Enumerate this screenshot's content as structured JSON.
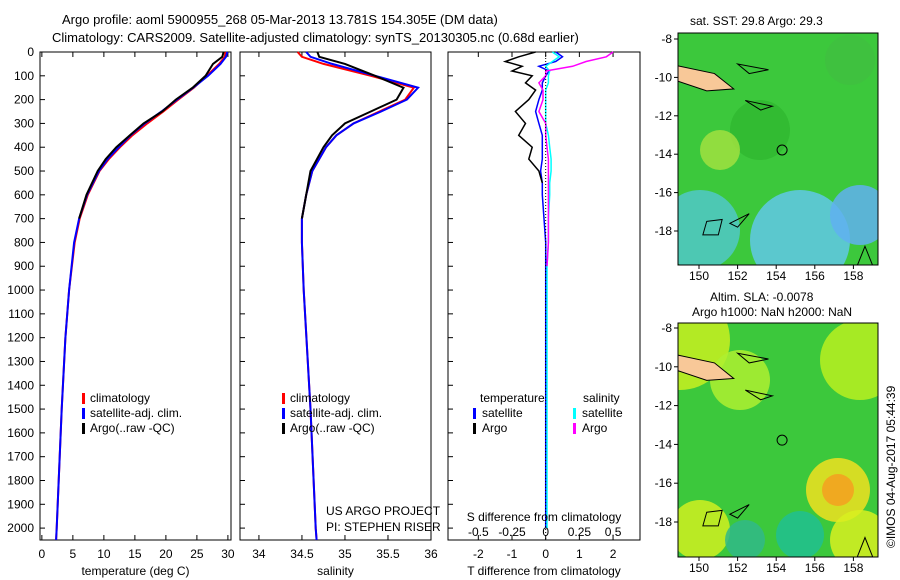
{
  "title_line1": "Argo profile: aoml 5900955_268 05-Mar-2013 13.781S 154.305E (DM data)",
  "title_line2": "Climatology: CARS2009. Satellite-adjusted climatology: synTS_20130305.nc (0.68d earlier)",
  "credit": "©IMOS 04-Aug-2017 05:44:39",
  "project_line1": "US ARGO PROJECT",
  "project_line2": "PI: STEPHEN RISER",
  "colors": {
    "climatology": "#ff0000",
    "satellite": "#0000ff",
    "argo": "#000000",
    "sal_satellite": "#00ffff",
    "sal_argo": "#ff00ff"
  },
  "legend": {
    "climatology": "climatology",
    "satellite": "satellite-adj. clim.",
    "argo": "Argo(..raw -QC)"
  },
  "diff_legend": {
    "temperature": "temperature",
    "salinity": "salinity",
    "satellite": "satellite",
    "argo": "Argo"
  },
  "chart_data": [
    {
      "type": "line",
      "name": "temperature",
      "xlabel": "temperature (deg C)",
      "xlim": [
        -0.3,
        30.5
      ],
      "xticks": [
        "0",
        "5",
        "10",
        "15",
        "20",
        "25",
        "30"
      ],
      "ylim": [
        0,
        2050
      ],
      "yticks": [
        "0",
        "100",
        "200",
        "300",
        "400",
        "500",
        "600",
        "700",
        "800",
        "900",
        "1000",
        "1100",
        "1200",
        "1300",
        "1400",
        "1500",
        "1600",
        "1700",
        "1800",
        "1900",
        "2000"
      ],
      "depth": [
        0,
        20,
        50,
        100,
        150,
        200,
        250,
        300,
        350,
        400,
        450,
        500,
        600,
        700,
        800,
        1000,
        1200,
        1500,
        2000,
        2050
      ],
      "series": [
        {
          "name": "climatology",
          "values": [
            29.6,
            29.5,
            28.6,
            26.6,
            24.5,
            22,
            19.6,
            17,
            14.6,
            12.6,
            10.8,
            9.3,
            7.4,
            6.1,
            5.3,
            4.4,
            3.8,
            3.2,
            2.4,
            2.3
          ]
        },
        {
          "name": "satellite-adj. clim.",
          "values": [
            29.9,
            29.7,
            28.8,
            26.8,
            24.4,
            21.8,
            19.3,
            16.6,
            14.3,
            12.4,
            10.6,
            9.2,
            7.3,
            6.0,
            5.2,
            4.4,
            3.8,
            3.2,
            2.4,
            2.3
          ]
        },
        {
          "name": "Argo",
          "values": [
            29.3,
            29.1,
            27.6,
            26.4,
            24.3,
            21.6,
            19.4,
            16.4,
            14.2,
            12.0,
            10.3,
            9.0,
            7.2,
            6.0,
            null,
            null,
            null,
            null,
            null,
            null
          ]
        }
      ]
    },
    {
      "type": "line",
      "name": "salinity",
      "xlabel": "salinity",
      "xlim": [
        33.78,
        36
      ],
      "xticks": [
        "34",
        "34.5",
        "35",
        "35.5",
        "36"
      ],
      "depth": [
        0,
        20,
        50,
        100,
        150,
        200,
        250,
        300,
        350,
        400,
        500,
        600,
        700,
        800,
        1000,
        1500,
        2000,
        2050
      ],
      "series": [
        {
          "name": "climatology",
          "values": [
            34.45,
            34.5,
            34.75,
            35.3,
            35.8,
            35.7,
            35.4,
            35.1,
            34.9,
            34.78,
            34.62,
            34.55,
            34.5,
            34.5,
            34.52,
            34.6,
            34.66,
            34.67
          ]
        },
        {
          "name": "satellite-adj. clim.",
          "values": [
            34.55,
            34.6,
            34.85,
            35.35,
            35.85,
            35.72,
            35.42,
            35.1,
            34.9,
            34.78,
            34.62,
            34.55,
            34.5,
            34.5,
            34.52,
            34.6,
            34.66,
            34.67
          ]
        },
        {
          "name": "Argo",
          "values": [
            34.68,
            34.7,
            35.0,
            35.35,
            35.68,
            35.6,
            35.3,
            35.0,
            34.85,
            34.75,
            34.6,
            34.55,
            34.5,
            null,
            null,
            null,
            null,
            null
          ]
        }
      ]
    },
    {
      "type": "line",
      "name": "differences",
      "xlabel": "T difference from climatology",
      "x2label": "S difference from climatology",
      "xlim": [
        -2.9,
        2.8
      ],
      "xticks": [
        "-2",
        "-1",
        "0",
        "1",
        "2"
      ],
      "x2ticks": [
        "-0.5",
        "-0.25",
        "0",
        "0.25",
        "0.5"
      ],
      "depth": [
        0,
        20,
        40,
        60,
        80,
        100,
        130,
        160,
        200,
        250,
        300,
        350,
        400,
        450,
        500,
        550,
        600,
        700,
        800,
        900,
        1000,
        1500,
        2000
      ],
      "series": [
        {
          "name": "T satellite",
          "values": [
            0.3,
            0.5,
            0.3,
            -0.2,
            0.1,
            0,
            -0.1,
            -0.1,
            -0.2,
            -0.3,
            -0.2,
            -0.1,
            -0.1,
            -0.1,
            -0.15,
            -0.1,
            -0.1,
            -0.05,
            0,
            0,
            0,
            0,
            0
          ]
        },
        {
          "name": "T Argo",
          "values": [
            -0.3,
            -0.8,
            -1.2,
            -0.7,
            -1.0,
            -0.4,
            -0.6,
            -0.3,
            -0.5,
            -0.9,
            -0.6,
            -0.8,
            -0.4,
            -0.5,
            -0.2,
            -0.1,
            null,
            null,
            null,
            null,
            null,
            null,
            null
          ]
        },
        {
          "name": "S satellite",
          "values": [
            0.05,
            0.1,
            0.05,
            0,
            0.03,
            0.02,
            0.02,
            0,
            0,
            0,
            0,
            0.02,
            0.03,
            0.04,
            0.04,
            0.03,
            0.03,
            0.02,
            0.02,
            0.01,
            0.01,
            0.01,
            0.01
          ]
        },
        {
          "name": "S Argo",
          "values": [
            0.5,
            0.45,
            0.3,
            0.2,
            0,
            0,
            -0.05,
            -0.02,
            -0.02,
            -0.05,
            0,
            0,
            0.01,
            0.02,
            0.02,
            0.02,
            0.02,
            0.02,
            0.02,
            0.01,
            null,
            null,
            null
          ]
        }
      ]
    },
    {
      "type": "heatmap",
      "name": "sst-map",
      "title": "sat. SST: 29.8 Argo: 29.3",
      "xticks": [
        "150",
        "152",
        "154",
        "156",
        "158"
      ],
      "yticks": [
        "-8",
        "-10",
        "-12",
        "-14",
        "-16",
        "-18"
      ],
      "argo_position": [
        154.305,
        -13.781
      ]
    },
    {
      "type": "heatmap",
      "name": "sla-map",
      "title_line1": "Altim. SLA: -0.0078",
      "title_line2": "Argo h1000: NaN h2000: NaN",
      "xticks": [
        "150",
        "152",
        "154",
        "156",
        "158"
      ],
      "yticks": [
        "-8",
        "-10",
        "-12",
        "-14",
        "-16",
        "-18"
      ],
      "argo_position": [
        154.305,
        -13.781
      ]
    }
  ]
}
